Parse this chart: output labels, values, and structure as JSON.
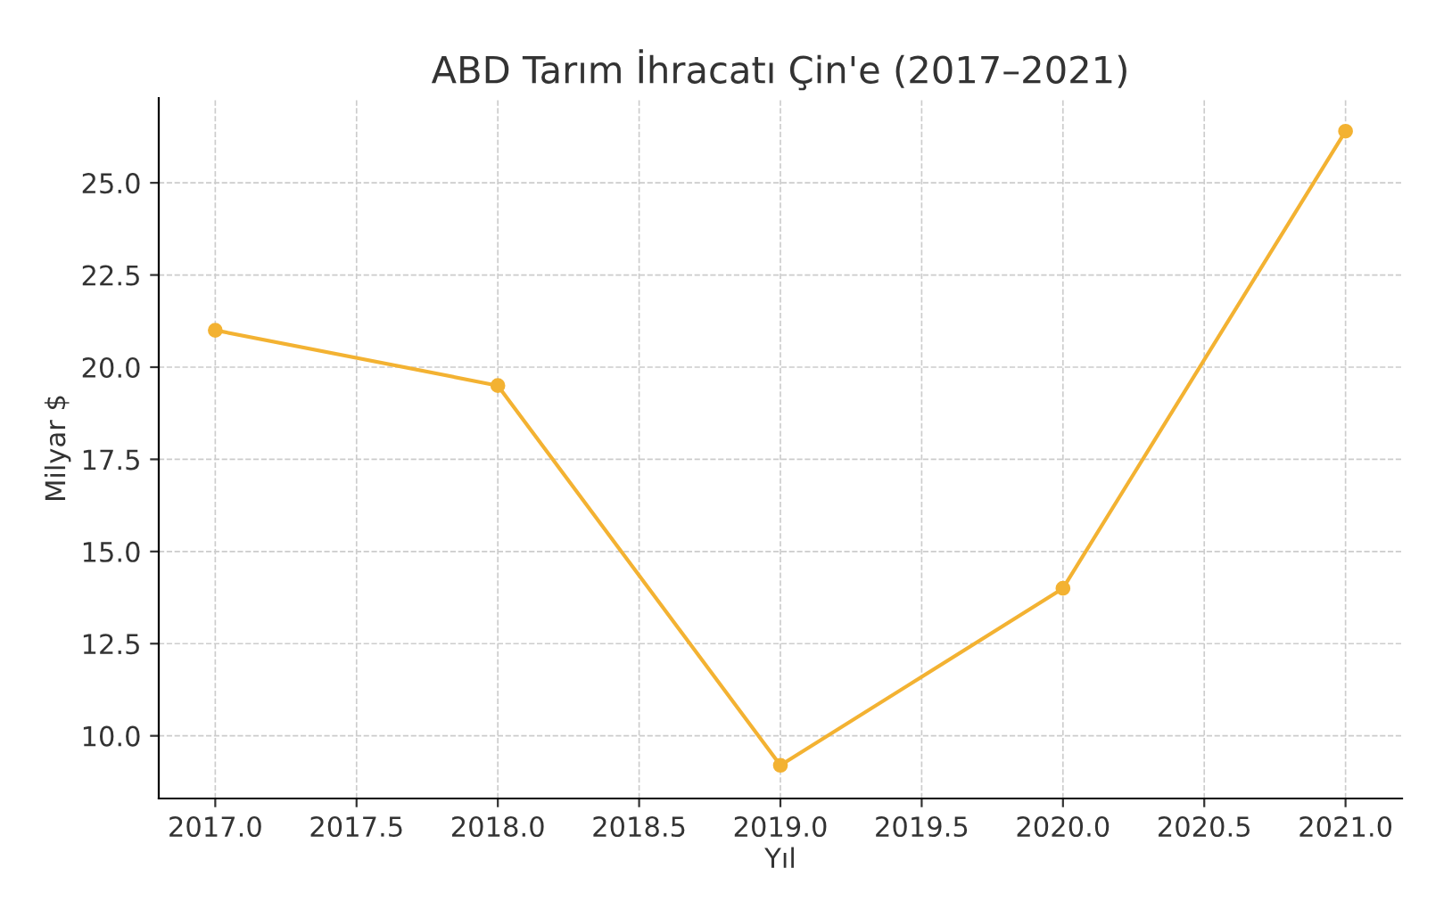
{
  "chart_data": {
    "type": "line",
    "title": "ABD Tarım İhracatı Çin'e (2017–2021)",
    "xlabel": "Yıl",
    "ylabel": "Milyar $",
    "x": [
      2017,
      2018,
      2019,
      2020,
      2021
    ],
    "series": [
      {
        "color": "#f3b232",
        "values": [
          21.0,
          19.5,
          9.2,
          14.0,
          26.4
        ]
      }
    ],
    "marker": "circle",
    "grid": true,
    "xlim": [
      2016.8,
      2021.2
    ],
    "xticks": [
      {
        "value": 2017,
        "label": "2017.0"
      },
      {
        "value": 2017.5,
        "label": "2017.5"
      },
      {
        "value": 2018,
        "label": "2018.0"
      },
      {
        "value": 2018.5,
        "label": "2018.5"
      },
      {
        "value": 2019,
        "label": "2019.0"
      },
      {
        "value": 2019.5,
        "label": "2019.5"
      },
      {
        "value": 2020,
        "label": "2020.0"
      },
      {
        "value": 2020.5,
        "label": "2020.5"
      },
      {
        "value": 2021,
        "label": "2021.0"
      }
    ],
    "ylim": [
      8.3,
      27.3
    ],
    "yticks": [
      {
        "value": 10,
        "label": "10.0"
      },
      {
        "value": 12.5,
        "label": "12.5"
      },
      {
        "value": 15,
        "label": "15.0"
      },
      {
        "value": 17.5,
        "label": "17.5"
      },
      {
        "value": 20,
        "label": "20.0"
      },
      {
        "value": 22.5,
        "label": "22.5"
      },
      {
        "value": 25,
        "label": "25.0"
      }
    ]
  }
}
